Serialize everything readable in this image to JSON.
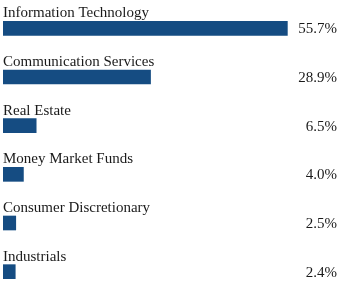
{
  "chart_data": {
    "type": "bar",
    "orientation": "horizontal",
    "categories": [
      "Information Technology",
      "Communication Services",
      "Real Estate",
      "Money Market Funds",
      "Consumer Discretionary",
      "Industrials"
    ],
    "values": [
      55.7,
      28.9,
      6.5,
      4.0,
      2.5,
      2.4
    ],
    "value_labels": [
      "55.7%",
      "28.9%",
      "6.5%",
      "4.0%",
      "2.5%",
      "2.4%"
    ],
    "data_labels": true,
    "color": "#154c82",
    "xlim": [
      0,
      57
    ],
    "tick_labels": false,
    "grid": false
  }
}
